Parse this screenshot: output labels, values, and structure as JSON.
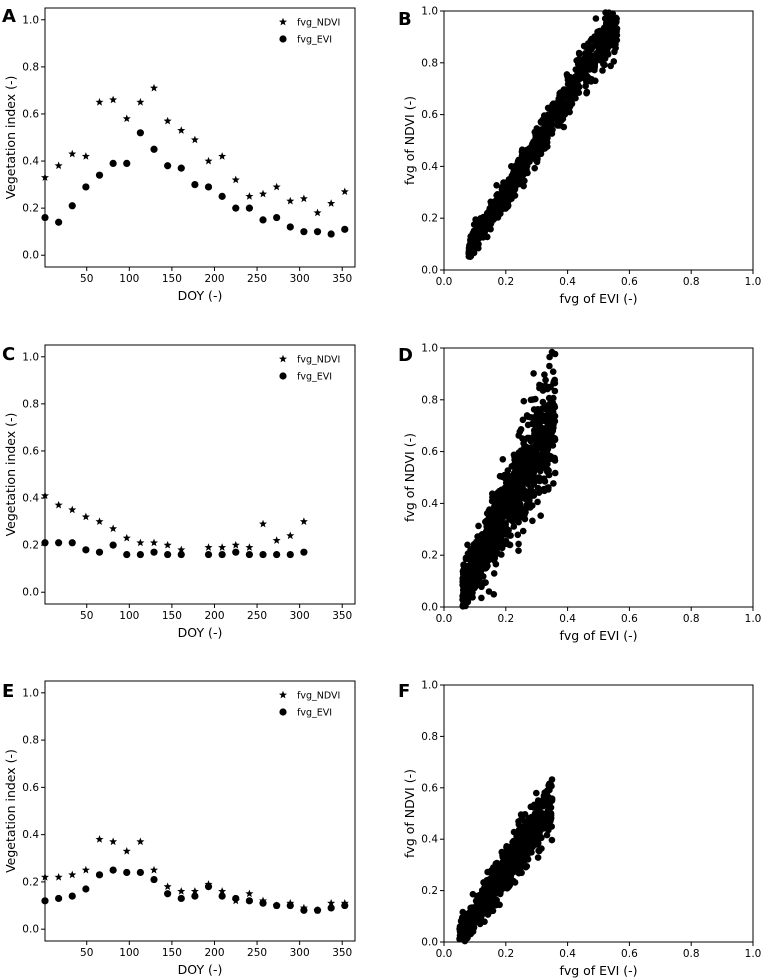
{
  "chart_data": [
    {
      "panel": "A",
      "type": "scatter",
      "xlabel": "DOY (-)",
      "ylabel": "Vegetation index (-)",
      "xlim": [
        1,
        365
      ],
      "ylim": [
        -0.05,
        1.05
      ],
      "xticks": [
        "50",
        "100",
        "150",
        "200",
        "250",
        "300",
        "350"
      ],
      "yticks": [
        "0.0",
        "0.2",
        "0.4",
        "0.6",
        "0.8",
        "1.0"
      ],
      "legend": [
        "fvg_NDVI",
        "fvg_EVI"
      ],
      "legend_position": "top-right",
      "x": [
        1,
        17,
        33,
        49,
        65,
        81,
        97,
        113,
        129,
        145,
        161,
        177,
        193,
        209,
        225,
        241,
        257,
        273,
        289,
        305,
        321,
        337,
        353
      ],
      "series": [
        {
          "name": "fvg_NDVI",
          "marker": "star",
          "values": [
            0.33,
            0.38,
            0.43,
            0.42,
            0.65,
            0.66,
            0.58,
            0.65,
            0.71,
            0.57,
            0.53,
            0.49,
            0.4,
            0.42,
            0.32,
            0.25,
            0.26,
            0.29,
            0.23,
            0.24,
            0.18,
            0.22,
            0.27
          ]
        },
        {
          "name": "fvg_EVI",
          "marker": "circle",
          "values": [
            0.16,
            0.14,
            0.21,
            0.29,
            0.34,
            0.39,
            0.39,
            0.52,
            0.45,
            0.38,
            0.37,
            0.3,
            0.29,
            0.25,
            0.2,
            0.2,
            0.15,
            0.16,
            0.12,
            0.1,
            0.1,
            0.09,
            0.11
          ]
        }
      ]
    },
    {
      "panel": "B",
      "type": "scatter",
      "xlabel": "fvg of EVI (-)",
      "ylabel": "fvg of NDVI (-)",
      "xlim": [
        0,
        1
      ],
      "ylim": [
        0,
        1
      ],
      "xticks": [
        "0.0",
        "0.2",
        "0.4",
        "0.6",
        "0.8",
        "1.0"
      ],
      "yticks": [
        "0.0",
        "0.2",
        "0.4",
        "0.6",
        "0.8",
        "1.0"
      ],
      "cloud": {
        "n": 900,
        "x_range": [
          0.08,
          0.56
        ],
        "slope": 1.85,
        "intercept": -0.07,
        "spread": 0.035,
        "seed": 11
      }
    },
    {
      "panel": "C",
      "type": "scatter",
      "xlabel": "DOY (-)",
      "ylabel": "Vegetation index (-)",
      "xlim": [
        1,
        365
      ],
      "ylim": [
        -0.05,
        1.05
      ],
      "xticks": [
        "50",
        "100",
        "150",
        "200",
        "250",
        "300",
        "350"
      ],
      "yticks": [
        "0.0",
        "0.2",
        "0.4",
        "0.6",
        "0.8",
        "1.0"
      ],
      "legend": [
        "fvg_NDVI",
        "fvg_EVI"
      ],
      "legend_position": "top-right",
      "x": [
        1,
        17,
        33,
        49,
        65,
        81,
        97,
        113,
        129,
        145,
        161,
        193,
        209,
        225,
        241,
        257,
        273,
        289,
        305
      ],
      "series": [
        {
          "name": "fvg_NDVI",
          "marker": "star",
          "values": [
            0.41,
            0.37,
            0.35,
            0.32,
            0.3,
            0.27,
            0.23,
            0.21,
            0.21,
            0.2,
            0.18,
            0.19,
            0.19,
            0.2,
            0.19,
            0.29,
            0.22,
            0.24,
            0.3
          ]
        },
        {
          "name": "fvg_EVI",
          "marker": "circle",
          "values": [
            0.21,
            0.21,
            0.21,
            0.18,
            0.17,
            0.2,
            0.16,
            0.16,
            0.17,
            0.16,
            0.16,
            0.16,
            0.16,
            0.17,
            0.16,
            0.16,
            0.16,
            0.16,
            0.17
          ]
        }
      ]
    },
    {
      "panel": "D",
      "type": "scatter",
      "xlabel": "fvg of EVI (-)",
      "ylabel": "fvg of NDVI (-)",
      "xlim": [
        0,
        1
      ],
      "ylim": [
        0,
        1
      ],
      "xticks": [
        "0.0",
        "0.2",
        "0.4",
        "0.6",
        "0.8",
        "1.0"
      ],
      "yticks": [
        "0.0",
        "0.2",
        "0.4",
        "0.6",
        "0.8",
        "1.0"
      ],
      "cloud": {
        "n": 1100,
        "x_range": [
          0.06,
          0.36
        ],
        "slope": 2.2,
        "intercept": -0.06,
        "spread": 0.075,
        "seed": 23
      }
    },
    {
      "panel": "E",
      "type": "scatter",
      "xlabel": "DOY (-)",
      "ylabel": "Vegetation index (-)",
      "xlim": [
        1,
        365
      ],
      "ylim": [
        -0.05,
        1.05
      ],
      "xticks": [
        "50",
        "100",
        "150",
        "200",
        "250",
        "300",
        "350"
      ],
      "yticks": [
        "0.0",
        "0.2",
        "0.4",
        "0.6",
        "0.8",
        "1.0"
      ],
      "legend": [
        "fvg_NDVI",
        "fvg_EVI"
      ],
      "legend_position": "top-right",
      "x": [
        1,
        17,
        33,
        49,
        65,
        81,
        97,
        113,
        129,
        145,
        161,
        177,
        193,
        209,
        225,
        241,
        257,
        273,
        289,
        305,
        321,
        337,
        353
      ],
      "series": [
        {
          "name": "fvg_NDVI",
          "marker": "star",
          "values": [
            0.22,
            0.22,
            0.23,
            0.25,
            0.38,
            0.37,
            0.33,
            0.37,
            0.25,
            0.18,
            0.16,
            0.16,
            0.19,
            0.16,
            0.12,
            0.15,
            0.12,
            0.1,
            0.11,
            0.09,
            0.08,
            0.11,
            0.11
          ]
        },
        {
          "name": "fvg_EVI",
          "marker": "circle",
          "values": [
            0.12,
            0.13,
            0.14,
            0.17,
            0.23,
            0.25,
            0.24,
            0.24,
            0.21,
            0.15,
            0.13,
            0.14,
            0.18,
            0.14,
            0.13,
            0.12,
            0.11,
            0.1,
            0.1,
            0.08,
            0.08,
            0.09,
            0.1
          ]
        }
      ]
    },
    {
      "panel": "F",
      "type": "scatter",
      "xlabel": "fvg of EVI (-)",
      "ylabel": "fvg of NDVI (-)",
      "xlim": [
        0,
        1
      ],
      "ylim": [
        0,
        1
      ],
      "xticks": [
        "0.0",
        "0.2",
        "0.4",
        "0.6",
        "0.8",
        "1.0"
      ],
      "yticks": [
        "0.0",
        "0.2",
        "0.4",
        "0.6",
        "0.8",
        "1.0"
      ],
      "cloud": {
        "n": 800,
        "x_range": [
          0.05,
          0.35
        ],
        "slope": 1.7,
        "intercept": -0.06,
        "spread": 0.04,
        "seed": 37
      }
    }
  ]
}
